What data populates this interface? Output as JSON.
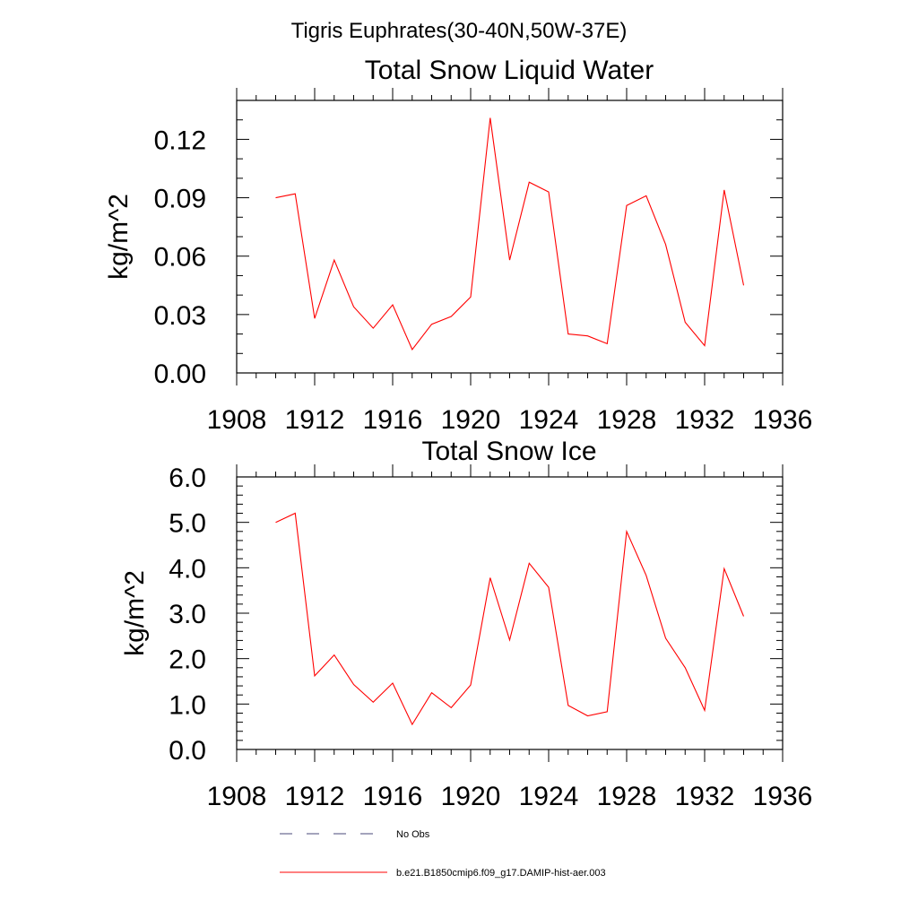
{
  "figure": {
    "suptitle": "Tigris Euphrates(30-40N,50W-37E)"
  },
  "legend": {
    "entries": [
      {
        "label": "No Obs",
        "style": "dashed",
        "color": "#4a4a7a"
      },
      {
        "label": "b.e21.B1850cmip6.f09_g17.DAMIP-hist-aer.003",
        "style": "solid",
        "color": "#ff0000"
      }
    ]
  },
  "chart_data": [
    {
      "type": "line",
      "title": "Total Snow Liquid Water",
      "ylabel": "kg/m^2",
      "xlabel": "",
      "xlim": [
        1908,
        1936
      ],
      "ylim": [
        0,
        0.14
      ],
      "xticks": [
        1908,
        1912,
        1916,
        1920,
        1924,
        1928,
        1932,
        1936
      ],
      "xtick_labels": [
        "1908",
        "1912",
        "1916",
        "1920",
        "1924",
        "1928",
        "1932",
        "1936"
      ],
      "yticks": [
        0,
        0.03,
        0.06,
        0.09,
        0.12
      ],
      "ytick_labels": [
        "0.00",
        "0.03",
        "0.06",
        "0.09",
        "0.12"
      ],
      "series": [
        {
          "color": "#ff0000",
          "x": [
            1910,
            1911,
            1912,
            1913,
            1914,
            1915,
            1916,
            1917,
            1918,
            1919,
            1920,
            1921,
            1922,
            1923,
            1924,
            1925,
            1926,
            1927,
            1928,
            1929,
            1930,
            1931,
            1932,
            1933,
            1934
          ],
          "y": [
            0.09,
            0.092,
            0.028,
            0.058,
            0.034,
            0.023,
            0.035,
            0.012,
            0.025,
            0.029,
            0.039,
            0.131,
            0.058,
            0.098,
            0.093,
            0.02,
            0.019,
            0.015,
            0.086,
            0.091,
            0.066,
            0.026,
            0.014,
            0.094,
            0.045
          ]
        }
      ]
    },
    {
      "type": "line",
      "title": "Total Snow Ice",
      "ylabel": "kg/m^2",
      "xlabel": "",
      "xlim": [
        1908,
        1936
      ],
      "ylim": [
        0,
        6
      ],
      "xticks": [
        1908,
        1912,
        1916,
        1920,
        1924,
        1928,
        1932,
        1936
      ],
      "xtick_labels": [
        "1908",
        "1912",
        "1916",
        "1920",
        "1924",
        "1928",
        "1932",
        "1936"
      ],
      "yticks": [
        0,
        1,
        2,
        3,
        4,
        5,
        6
      ],
      "ytick_labels": [
        "0.0",
        "1.0",
        "2.0",
        "3.0",
        "4.0",
        "5.0",
        "6.0"
      ],
      "series": [
        {
          "color": "#ff0000",
          "x": [
            1910,
            1911,
            1912,
            1913,
            1914,
            1915,
            1916,
            1917,
            1918,
            1919,
            1920,
            1921,
            1922,
            1923,
            1924,
            1925,
            1926,
            1927,
            1928,
            1929,
            1930,
            1931,
            1932,
            1933,
            1934
          ],
          "y": [
            5.0,
            5.2,
            1.62,
            2.08,
            1.43,
            1.04,
            1.46,
            0.55,
            1.25,
            0.92,
            1.42,
            3.78,
            2.41,
            4.1,
            3.57,
            0.97,
            0.74,
            0.83,
            4.8,
            3.83,
            2.45,
            1.8,
            0.86,
            3.98,
            2.93
          ]
        }
      ]
    }
  ]
}
